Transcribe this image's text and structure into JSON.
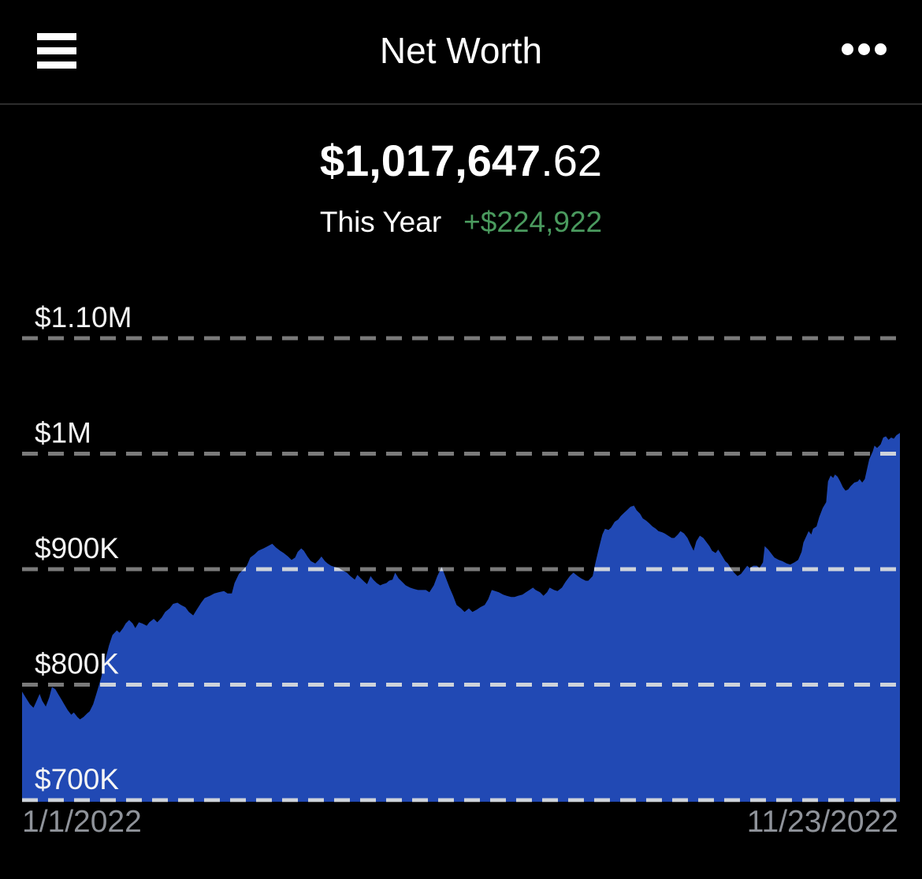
{
  "header": {
    "title": "Net Worth"
  },
  "summary": {
    "value_main": "$1,017,647",
    "value_decimal": ".62",
    "period_label": "This Year",
    "change_text": "+$224,922",
    "change_color": "#4a9a5e"
  },
  "colors": {
    "background": "#000000",
    "header_divider": "#2d2d2d",
    "area_fill": "#2149b4",
    "gridline": "#7a7a7a",
    "gridline_over_area": "#ced3db",
    "date_label": "#8f939a",
    "tick_label": "#f5f5f5"
  },
  "chart_data": {
    "type": "area",
    "title": "Net worth over time",
    "x_range": [
      "1/1/2022",
      "11/23/2022"
    ],
    "ylim": [
      700000,
      1150000
    ],
    "grid": "dashed-horizontal",
    "legend": "none",
    "y_ticks": [
      {
        "label": "$1.10M",
        "value": 1100000
      },
      {
        "label": "$1M",
        "value": 1000000
      },
      {
        "label": "$900K",
        "value": 900000
      },
      {
        "label": "$800K",
        "value": 800000
      },
      {
        "label": "$700K",
        "value": 700000
      }
    ],
    "series": [
      {
        "name": "Net Worth",
        "color": "#2149b4",
        "points_format": "[fraction_of_date_range, value_in_thousands_usd]",
        "points": [
          [
            0.0,
            794
          ],
          [
            0.004,
            789
          ],
          [
            0.009,
            783
          ],
          [
            0.013,
            780
          ],
          [
            0.016,
            785
          ],
          [
            0.02,
            792
          ],
          [
            0.023,
            786
          ],
          [
            0.027,
            781
          ],
          [
            0.031,
            789
          ],
          [
            0.034,
            798
          ],
          [
            0.038,
            796
          ],
          [
            0.041,
            792
          ],
          [
            0.045,
            787
          ],
          [
            0.048,
            783
          ],
          [
            0.052,
            778
          ],
          [
            0.056,
            774
          ],
          [
            0.059,
            776
          ],
          [
            0.063,
            772
          ],
          [
            0.066,
            770
          ],
          [
            0.07,
            772
          ],
          [
            0.074,
            775
          ],
          [
            0.077,
            777
          ],
          [
            0.081,
            783
          ],
          [
            0.085,
            793
          ],
          [
            0.09,
            806
          ],
          [
            0.094,
            819
          ],
          [
            0.099,
            834
          ],
          [
            0.103,
            843
          ],
          [
            0.108,
            847
          ],
          [
            0.111,
            845
          ],
          [
            0.115,
            849
          ],
          [
            0.118,
            853
          ],
          [
            0.122,
            856
          ],
          [
            0.126,
            853
          ],
          [
            0.129,
            849
          ],
          [
            0.133,
            854
          ],
          [
            0.137,
            853
          ],
          [
            0.142,
            851
          ],
          [
            0.145,
            854
          ],
          [
            0.15,
            857
          ],
          [
            0.154,
            854
          ],
          [
            0.159,
            858
          ],
          [
            0.163,
            863
          ],
          [
            0.168,
            866
          ],
          [
            0.172,
            870
          ],
          [
            0.177,
            871
          ],
          [
            0.181,
            869
          ],
          [
            0.186,
            867
          ],
          [
            0.19,
            863
          ],
          [
            0.195,
            860
          ],
          [
            0.199,
            865
          ],
          [
            0.204,
            871
          ],
          [
            0.208,
            875
          ],
          [
            0.214,
            877
          ],
          [
            0.219,
            879
          ],
          [
            0.224,
            880
          ],
          [
            0.23,
            881
          ],
          [
            0.234,
            879
          ],
          [
            0.239,
            879
          ],
          [
            0.242,
            888
          ],
          [
            0.247,
            896
          ],
          [
            0.251,
            899
          ],
          [
            0.256,
            903
          ],
          [
            0.26,
            910
          ],
          [
            0.265,
            913
          ],
          [
            0.269,
            916
          ],
          [
            0.275,
            918
          ],
          [
            0.28,
            920
          ],
          [
            0.285,
            922
          ],
          [
            0.289,
            919
          ],
          [
            0.294,
            916
          ],
          [
            0.298,
            914
          ],
          [
            0.303,
            911
          ],
          [
            0.307,
            908
          ],
          [
            0.311,
            910
          ],
          [
            0.314,
            915
          ],
          [
            0.318,
            918
          ],
          [
            0.321,
            916
          ],
          [
            0.325,
            911
          ],
          [
            0.329,
            907
          ],
          [
            0.334,
            905
          ],
          [
            0.338,
            908
          ],
          [
            0.341,
            911
          ],
          [
            0.345,
            907
          ],
          [
            0.348,
            905
          ],
          [
            0.352,
            903
          ],
          [
            0.356,
            902
          ],
          [
            0.361,
            901
          ],
          [
            0.365,
            899
          ],
          [
            0.37,
            897
          ],
          [
            0.374,
            894
          ],
          [
            0.379,
            891
          ],
          [
            0.382,
            895
          ],
          [
            0.386,
            892
          ],
          [
            0.39,
            889
          ],
          [
            0.393,
            887
          ],
          [
            0.397,
            894
          ],
          [
            0.4,
            891
          ],
          [
            0.404,
            888
          ],
          [
            0.408,
            886
          ],
          [
            0.411,
            887
          ],
          [
            0.415,
            888
          ],
          [
            0.418,
            890
          ],
          [
            0.422,
            891
          ],
          [
            0.425,
            897
          ],
          [
            0.429,
            892
          ],
          [
            0.433,
            889
          ],
          [
            0.437,
            886
          ],
          [
            0.442,
            884
          ],
          [
            0.446,
            883
          ],
          [
            0.451,
            882
          ],
          [
            0.455,
            882
          ],
          [
            0.46,
            882
          ],
          [
            0.464,
            880
          ],
          [
            0.469,
            886
          ],
          [
            0.473,
            894
          ],
          [
            0.478,
            902
          ],
          [
            0.482,
            894
          ],
          [
            0.487,
            884
          ],
          [
            0.491,
            877
          ],
          [
            0.495,
            869
          ],
          [
            0.5,
            866
          ],
          [
            0.504,
            863
          ],
          [
            0.509,
            866
          ],
          [
            0.513,
            863
          ],
          [
            0.518,
            865
          ],
          [
            0.522,
            867
          ],
          [
            0.527,
            869
          ],
          [
            0.531,
            874
          ],
          [
            0.535,
            882
          ],
          [
            0.539,
            881
          ],
          [
            0.543,
            880
          ],
          [
            0.548,
            878
          ],
          [
            0.552,
            877
          ],
          [
            0.557,
            876
          ],
          [
            0.561,
            876
          ],
          [
            0.565,
            877
          ],
          [
            0.57,
            878
          ],
          [
            0.574,
            880
          ],
          [
            0.578,
            882
          ],
          [
            0.582,
            884
          ],
          [
            0.585,
            882
          ],
          [
            0.59,
            880
          ],
          [
            0.594,
            877
          ],
          [
            0.598,
            880
          ],
          [
            0.601,
            884
          ],
          [
            0.606,
            882
          ],
          [
            0.61,
            881
          ],
          [
            0.615,
            884
          ],
          [
            0.619,
            889
          ],
          [
            0.624,
            894
          ],
          [
            0.628,
            897
          ],
          [
            0.633,
            894
          ],
          [
            0.637,
            892
          ],
          [
            0.642,
            890
          ],
          [
            0.645,
            890
          ],
          [
            0.65,
            894
          ],
          [
            0.653,
            905
          ],
          [
            0.657,
            918
          ],
          [
            0.661,
            930
          ],
          [
            0.664,
            935
          ],
          [
            0.668,
            934
          ],
          [
            0.671,
            936
          ],
          [
            0.675,
            941
          ],
          [
            0.679,
            943
          ],
          [
            0.682,
            946
          ],
          [
            0.686,
            949
          ],
          [
            0.689,
            951
          ],
          [
            0.693,
            954
          ],
          [
            0.697,
            955
          ],
          [
            0.7,
            951
          ],
          [
            0.704,
            948
          ],
          [
            0.707,
            944
          ],
          [
            0.711,
            942
          ],
          [
            0.714,
            940
          ],
          [
            0.718,
            937
          ],
          [
            0.722,
            935
          ],
          [
            0.725,
            933
          ],
          [
            0.729,
            932
          ],
          [
            0.732,
            931
          ],
          [
            0.736,
            929
          ],
          [
            0.74,
            927
          ],
          [
            0.743,
            927
          ],
          [
            0.747,
            930
          ],
          [
            0.75,
            933
          ],
          [
            0.754,
            931
          ],
          [
            0.758,
            927
          ],
          [
            0.761,
            922
          ],
          [
            0.765,
            916
          ],
          [
            0.768,
            924
          ],
          [
            0.772,
            929
          ],
          [
            0.776,
            927
          ],
          [
            0.779,
            924
          ],
          [
            0.783,
            920
          ],
          [
            0.786,
            916
          ],
          [
            0.79,
            914
          ],
          [
            0.793,
            917
          ],
          [
            0.797,
            912
          ],
          [
            0.801,
            907
          ],
          [
            0.804,
            905
          ],
          [
            0.808,
            900
          ],
          [
            0.811,
            897
          ],
          [
            0.815,
            894
          ],
          [
            0.819,
            896
          ],
          [
            0.822,
            899
          ],
          [
            0.826,
            903
          ],
          [
            0.829,
            901
          ],
          [
            0.833,
            903
          ],
          [
            0.837,
            903
          ],
          [
            0.84,
            901
          ],
          [
            0.844,
            906
          ],
          [
            0.846,
            920
          ],
          [
            0.85,
            917
          ],
          [
            0.854,
            913
          ],
          [
            0.857,
            910
          ],
          [
            0.862,
            908
          ],
          [
            0.866,
            907
          ],
          [
            0.871,
            905
          ],
          [
            0.875,
            904
          ],
          [
            0.88,
            906
          ],
          [
            0.884,
            908
          ],
          [
            0.888,
            915
          ],
          [
            0.89,
            923
          ],
          [
            0.893,
            928
          ],
          [
            0.896,
            933
          ],
          [
            0.899,
            930
          ],
          [
            0.901,
            935
          ],
          [
            0.905,
            937
          ],
          [
            0.908,
            945
          ],
          [
            0.912,
            953
          ],
          [
            0.916,
            958
          ],
          [
            0.918,
            976
          ],
          [
            0.921,
            981
          ],
          [
            0.924,
            979
          ],
          [
            0.926,
            982
          ],
          [
            0.929,
            980
          ],
          [
            0.932,
            976
          ],
          [
            0.935,
            971
          ],
          [
            0.938,
            968
          ],
          [
            0.941,
            969
          ],
          [
            0.944,
            972
          ],
          [
            0.948,
            975
          ],
          [
            0.952,
            976
          ],
          [
            0.954,
            978
          ],
          [
            0.957,
            975
          ],
          [
            0.96,
            978
          ],
          [
            0.962,
            985
          ],
          [
            0.965,
            995
          ],
          [
            0.969,
            1002
          ],
          [
            0.971,
            1007
          ],
          [
            0.974,
            1005
          ],
          [
            0.978,
            1008
          ],
          [
            0.981,
            1014
          ],
          [
            0.984,
            1015
          ],
          [
            0.987,
            1012
          ],
          [
            0.99,
            1014
          ],
          [
            0.993,
            1013
          ],
          [
            0.996,
            1016
          ],
          [
            1.0,
            1018
          ]
        ]
      }
    ]
  }
}
